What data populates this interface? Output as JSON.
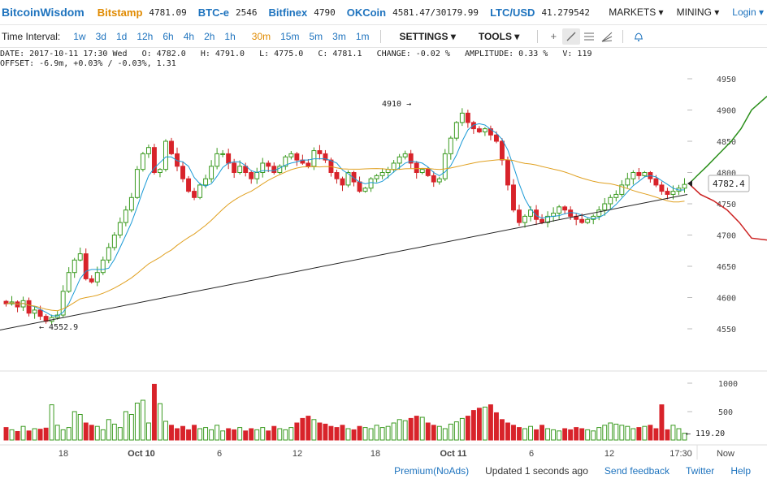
{
  "header": {
    "logo": "BitcoinWisdom",
    "exchanges": [
      {
        "name": "Bitstamp",
        "value": "4781.09",
        "color": "orange"
      },
      {
        "name": "BTC-e",
        "value": "2546",
        "color": "blue"
      },
      {
        "name": "Bitfinex",
        "value": "4790",
        "color": "blue"
      },
      {
        "name": "OKCoin",
        "value": "4581.47/30179.99",
        "color": "blue"
      },
      {
        "name": "LTC/USD",
        "value": "41.279542",
        "color": "blue"
      }
    ],
    "markets": "MARKETS ▾",
    "mining": "MINING ▾",
    "login": "Login ▾"
  },
  "toolbar": {
    "label": "Time Interval:",
    "intervals": [
      "1w",
      "3d",
      "1d",
      "12h",
      "6h",
      "4h",
      "2h",
      "1h",
      "30m",
      "15m",
      "5m",
      "3m",
      "1m"
    ],
    "active_interval": "30m",
    "settings": "SETTINGS ▾",
    "tools": "TOOLS ▾",
    "tool_icons": [
      "crosshair-icon",
      "line-draw-icon",
      "fib-lines-icon",
      "fan-icon",
      "bell-icon"
    ]
  },
  "info": {
    "line1": "DATE: 2017-10-11 17:30 Wed   O: 4782.0   H: 4791.0   L: 4775.0   C: 4781.1   CHANGE: -0.02 %   AMPLITUDE: 0.33 %   V: 119",
    "line2": "OFFSET: -6.9m, +0.03% / -0.03%, 1.31"
  },
  "chart_data": {
    "type": "candlestick",
    "y_ticks": [
      "4950",
      "4900",
      "4850",
      "4800",
      "4750",
      "4700",
      "4650",
      "4600",
      "4550"
    ],
    "volume_ticks": [
      "1000",
      "500"
    ],
    "x_ticks": [
      "18",
      "Oct 10",
      "6",
      "12",
      "18",
      "Oct 11",
      "6",
      "12",
      "17:30"
    ],
    "now_label": "Now",
    "current_price": "4782.4",
    "annotations": {
      "high": "4910 →",
      "low": "← 4552.9",
      "volume": "← 119.20"
    },
    "closes": [
      4590,
      4593,
      4585,
      4595,
      4575,
      4580,
      4570,
      4562,
      4568,
      4572,
      4610,
      4640,
      4660,
      4670,
      4630,
      4625,
      4640,
      4660,
      4680,
      4700,
      4720,
      4740,
      4760,
      4805,
      4830,
      4840,
      4800,
      4805,
      4850,
      4830,
      4810,
      4790,
      4770,
      4760,
      4780,
      4790,
      4810,
      4830,
      4830,
      4815,
      4800,
      4810,
      4800,
      4790,
      4800,
      4815,
      4810,
      4800,
      4810,
      4825,
      4830,
      4820,
      4815,
      4810,
      4835,
      4830,
      4820,
      4800,
      4790,
      4780,
      4800,
      4785,
      4770,
      4775,
      4790,
      4795,
      4800,
      4805,
      4815,
      4825,
      4830,
      4815,
      4800,
      4805,
      4795,
      4785,
      4790,
      4830,
      4855,
      4880,
      4895,
      4880,
      4870,
      4865,
      4870,
      4860,
      4850,
      4820,
      4780,
      4740,
      4720,
      4730,
      4740,
      4725,
      4720,
      4730,
      4735,
      4745,
      4740,
      4730,
      4725,
      4720,
      4725,
      4730,
      4740,
      4750,
      4760,
      4765,
      4780,
      4790,
      4800,
      4795,
      4800,
      4790,
      4780,
      4770,
      4765,
      4770,
      4775,
      4781
    ],
    "volumes": [
      220,
      180,
      150,
      240,
      160,
      200,
      190,
      210,
      620,
      260,
      180,
      220,
      500,
      450,
      300,
      260,
      240,
      180,
      360,
      280,
      220,
      500,
      450,
      650,
      700,
      300,
      980,
      640,
      330,
      260,
      200,
      240,
      180,
      260,
      200,
      220,
      180,
      260,
      160,
      200,
      180,
      220,
      160,
      200,
      180,
      220,
      160,
      240,
      200,
      180,
      220,
      300,
      380,
      420,
      360,
      300,
      280,
      240,
      220,
      260,
      200,
      180,
      240,
      220,
      200,
      260,
      220,
      240,
      300,
      360,
      340,
      380,
      420,
      400,
      300,
      260,
      240,
      200,
      280,
      320,
      380,
      420,
      520,
      560,
      580,
      620,
      480,
      360,
      300,
      260,
      220,
      200,
      240,
      180,
      260,
      200,
      180,
      160,
      200,
      180,
      220,
      200,
      180,
      160,
      220,
      260,
      300,
      280,
      260,
      240,
      200,
      220,
      240,
      260,
      200,
      620,
      180,
      260,
      200,
      119
    ]
  },
  "footer": {
    "premium": "Premium(NoAds)",
    "updated": "Updated 1 seconds ago",
    "feedback": "Send feedback",
    "twitter": "Twitter",
    "help": "Help"
  }
}
